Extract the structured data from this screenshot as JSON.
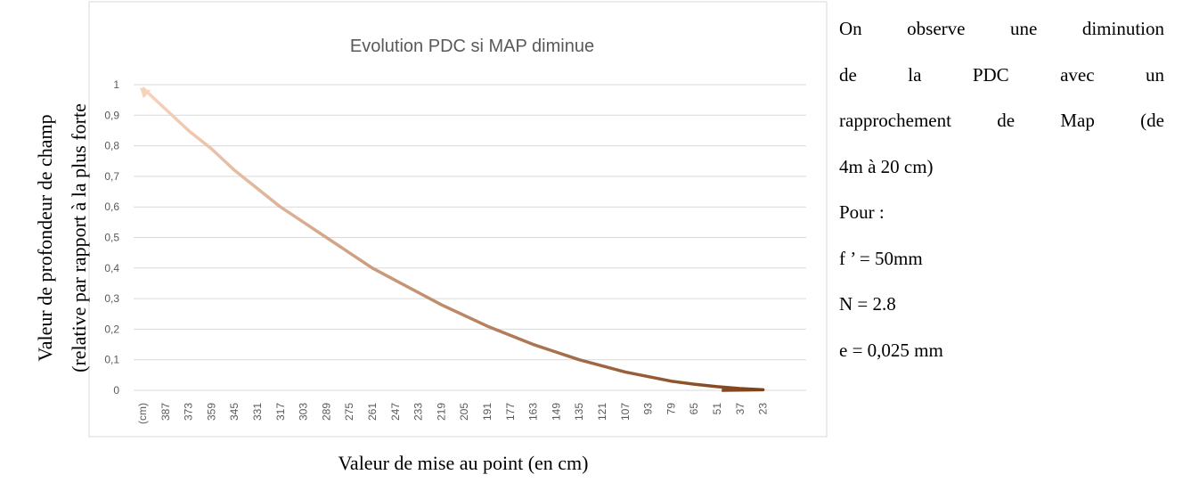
{
  "chart_data": {
    "type": "line",
    "title": "Evolution PDC si MAP diminue",
    "ylabel": [
      "Valeur de profondeur de champ",
      "(relative par rapport à la plus forte"
    ],
    "xlabel": "Valeur de mise au point (en cm)",
    "categories": [
      "(cm)",
      "387",
      "373",
      "359",
      "345",
      "331",
      "317",
      "303",
      "289",
      "275",
      "261",
      "247",
      "233",
      "219",
      "205",
      "191",
      "177",
      "163",
      "149",
      "135",
      "121",
      "107",
      "93",
      "79",
      "65",
      "51",
      "37",
      "23",
      null
    ],
    "values": [
      0.99,
      0.92,
      0.85,
      0.79,
      0.72,
      0.66,
      0.6,
      0.55,
      0.5,
      0.45,
      0.4,
      0.36,
      0.32,
      0.28,
      0.245,
      0.21,
      0.18,
      0.15,
      0.125,
      0.1,
      0.08,
      0.06,
      0.045,
      0.03,
      0.02,
      0.012,
      0.006,
      0.002,
      0
    ],
    "colors": [
      "#f8d3bc",
      "#7a3b10"
    ],
    "ylim": [
      0,
      1
    ],
    "yticks": [
      0,
      {
        "value": 0.1,
        "label": "0,1"
      },
      {
        "value": 0.2,
        "label": "0,2"
      },
      {
        "value": 0.3,
        "label": "0,3"
      },
      {
        "value": 0.4,
        "label": "0,4"
      },
      {
        "value": 0.5,
        "label": "0,5"
      },
      {
        "value": 0.6,
        "label": "0,6"
      },
      {
        "value": 0.7,
        "label": "0,7"
      },
      {
        "value": 0.8,
        "label": "0,8"
      },
      {
        "value": 0.9,
        "label": "0,9"
      },
      1
    ],
    "grid": true
  },
  "side_text": {
    "lines": [
      "On observe une diminution",
      "de la PDC avec un",
      "rapprochement de Map (de",
      "4m à 20 cm)",
      "Pour :",
      "f ’ = 50mm",
      "N = 2.8",
      "e = 0,025 mm"
    ],
    "justified": 3
  }
}
